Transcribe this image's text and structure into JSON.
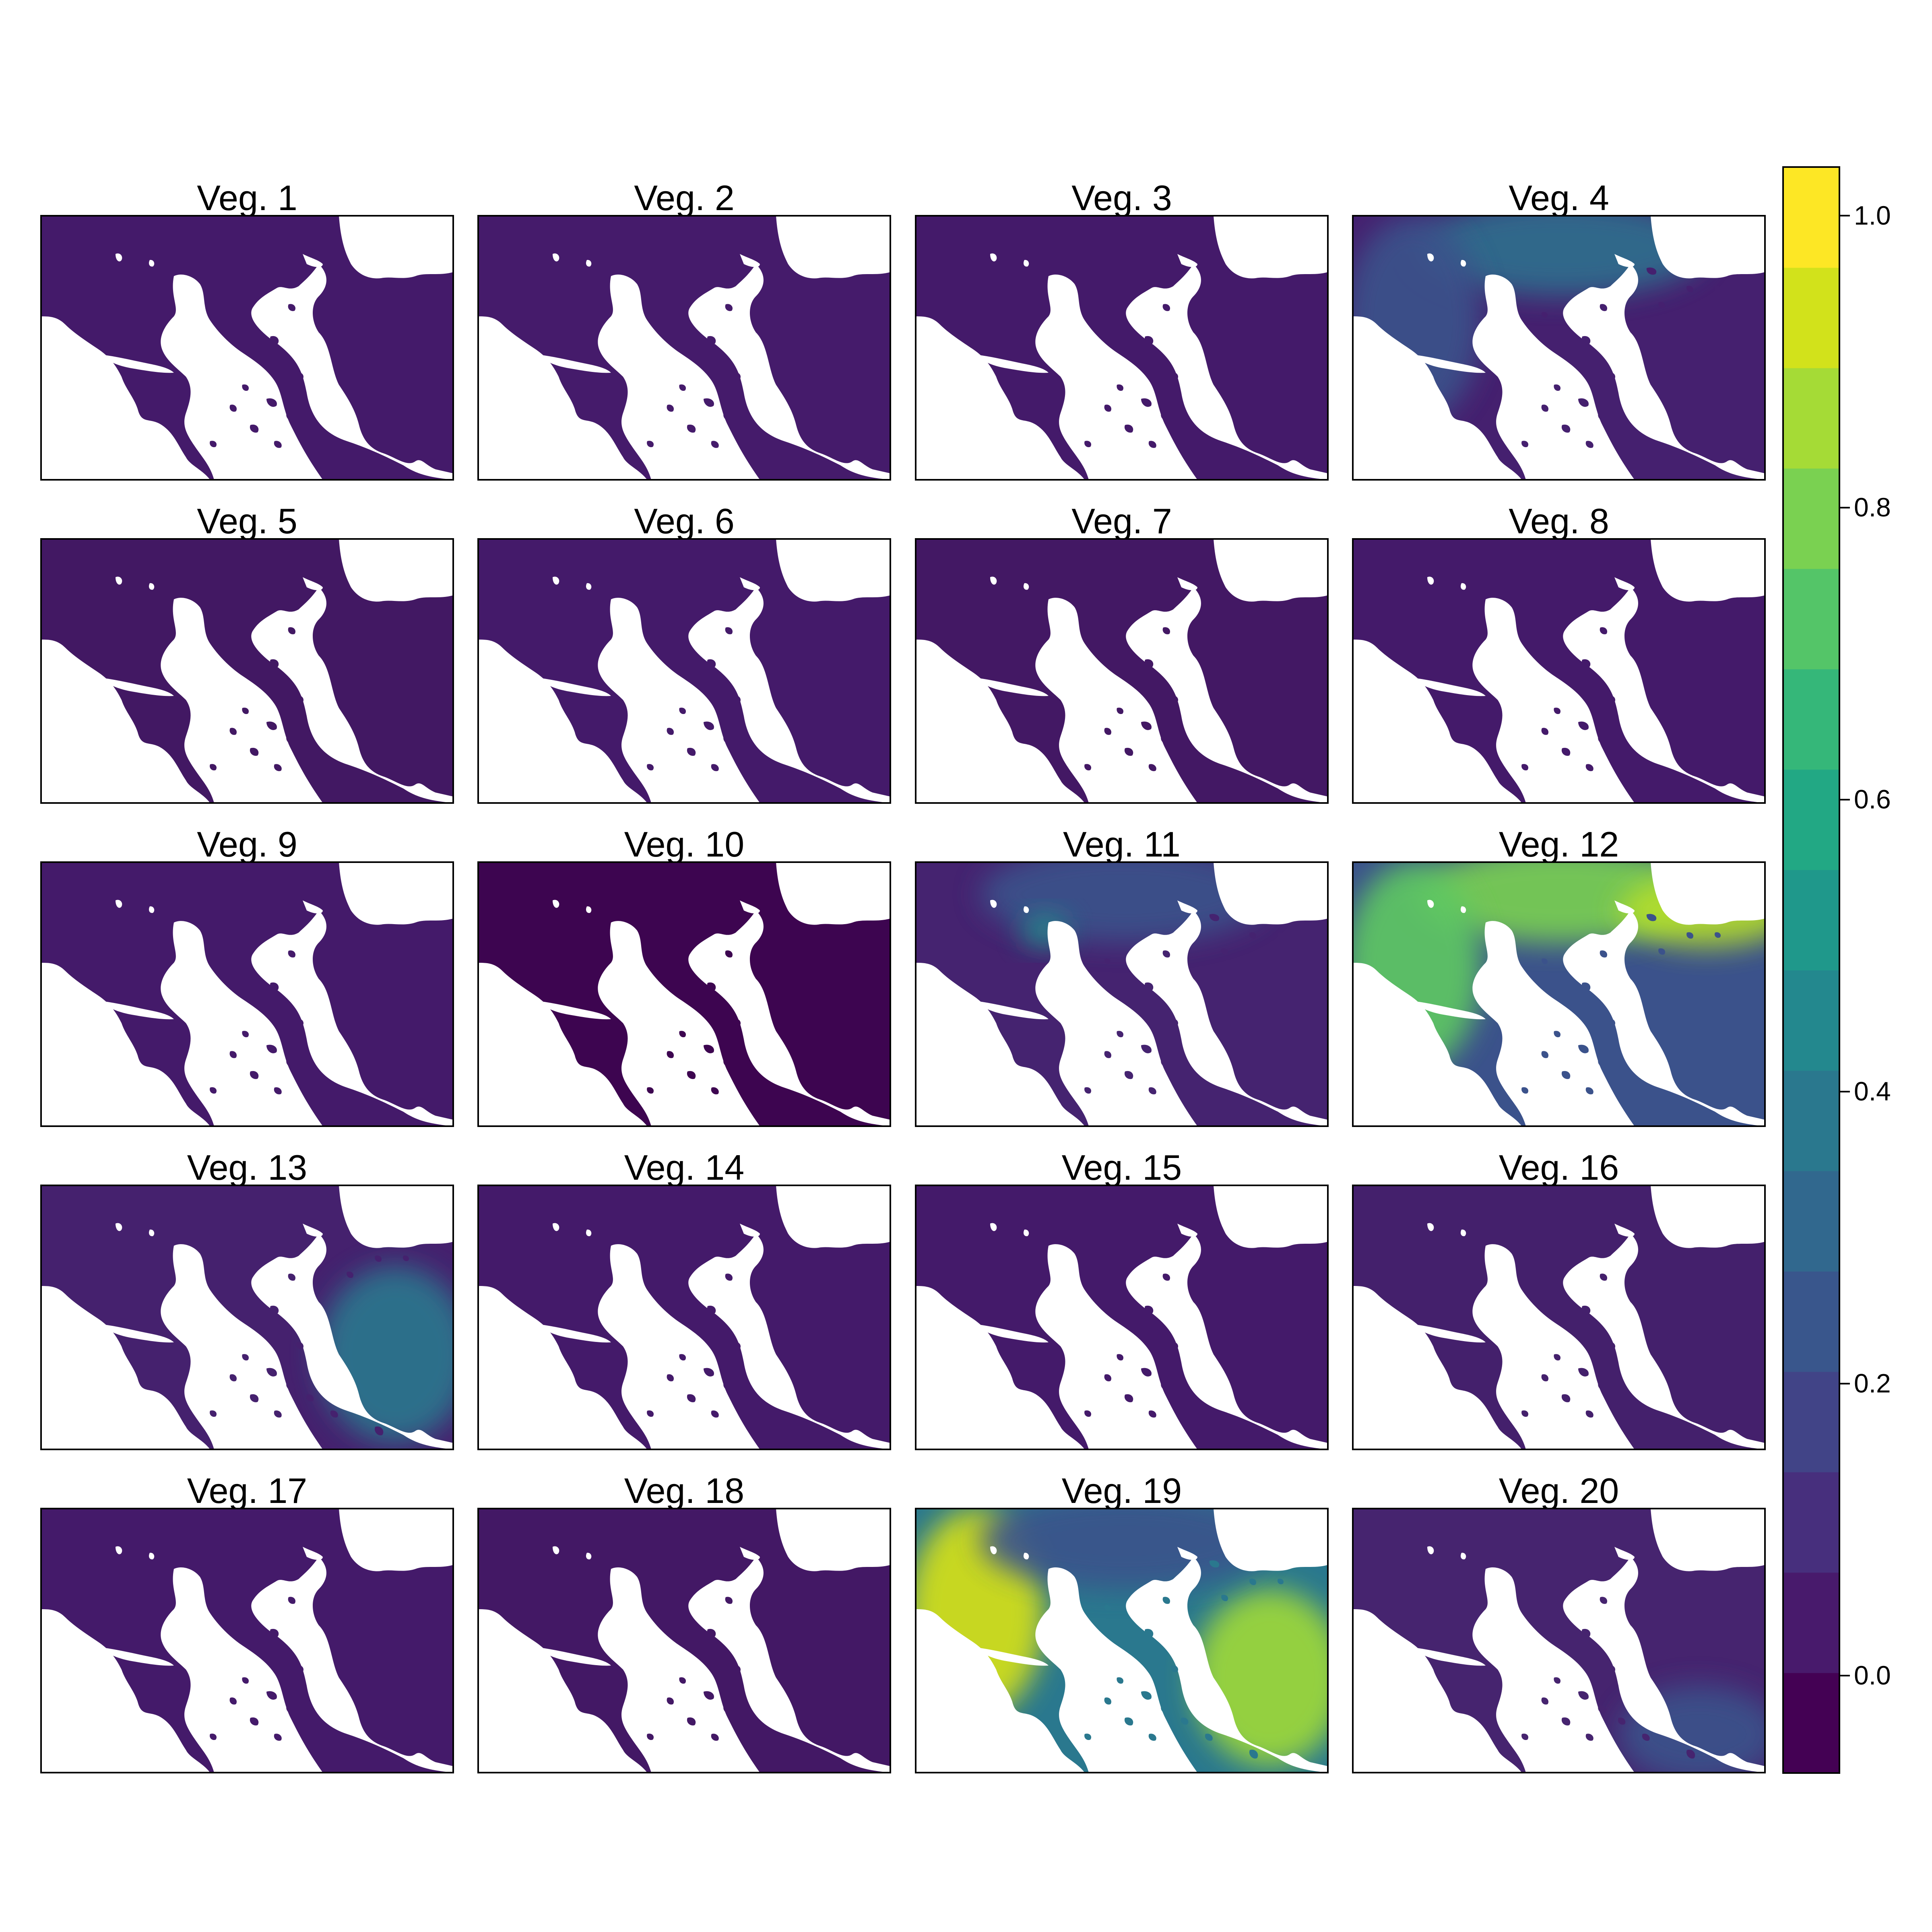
{
  "panels": [
    {
      "title": "Veg. 1",
      "base": "#441a6a"
    },
    {
      "title": "Veg. 2",
      "base": "#451b6b"
    },
    {
      "title": "Veg. 3",
      "base": "#441a6a"
    },
    {
      "title": "Veg. 4",
      "base": "#45206f",
      "highlights": [
        {
          "where": "north",
          "color": "#2e6f8e"
        },
        {
          "where": "west",
          "color": "#3b528b"
        }
      ]
    },
    {
      "title": "Veg. 5",
      "base": "#421863"
    },
    {
      "title": "Veg. 6",
      "base": "#441a6a"
    },
    {
      "title": "Veg. 7",
      "base": "#431864"
    },
    {
      "title": "Veg. 8",
      "base": "#441a6a"
    },
    {
      "title": "Veg. 9",
      "base": "#441a6a"
    },
    {
      "title": "Veg. 10",
      "base": "#3d0550"
    },
    {
      "title": "Veg. 11",
      "base": "#452370",
      "highlights": [
        {
          "where": "north",
          "color": "#3b528b"
        },
        {
          "where": "center",
          "color": "#21918c"
        }
      ]
    },
    {
      "title": "Veg. 12",
      "base": "#3b528b",
      "highlights": [
        {
          "where": "north",
          "color": "#7ad151"
        },
        {
          "where": "west",
          "color": "#5ec962"
        },
        {
          "where": "northeast",
          "color": "#b5de2b"
        }
      ]
    },
    {
      "title": "Veg. 13",
      "base": "#45216e",
      "highlights": [
        {
          "where": "east",
          "color": "#2a788e"
        }
      ]
    },
    {
      "title": "Veg. 14",
      "base": "#441a6a"
    },
    {
      "title": "Veg. 15",
      "base": "#441a6a"
    },
    {
      "title": "Veg. 16",
      "base": "#44206c"
    },
    {
      "title": "Veg. 17",
      "base": "#441a6a"
    },
    {
      "title": "Veg. 18",
      "base": "#431865"
    },
    {
      "title": "Veg. 19",
      "base": "#2a788e",
      "highlights": [
        {
          "where": "west",
          "color": "#d8e219"
        },
        {
          "where": "east",
          "color": "#a0da39"
        },
        {
          "where": "north",
          "color": "#3b528b"
        }
      ]
    },
    {
      "title": "Veg. 20",
      "base": "#46246f",
      "highlights": [
        {
          "where": "southeast",
          "color": "#3b528b"
        }
      ]
    }
  ],
  "legend": {
    "min": -0.0667,
    "max": 1.0333,
    "steps": 16,
    "ticks": [
      {
        "value": 0.0,
        "label": "0.0"
      },
      {
        "value": 0.2,
        "label": "0.2"
      },
      {
        "value": 0.4,
        "label": "0.4"
      },
      {
        "value": 0.6,
        "label": "0.6"
      },
      {
        "value": 0.8,
        "label": "0.8"
      },
      {
        "value": 1.0,
        "label": "1.0"
      }
    ],
    "colors": [
      "#440154",
      "#481a6c",
      "#472f7d",
      "#414487",
      "#39568c",
      "#31688e",
      "#2a788e",
      "#23888e",
      "#1f988b",
      "#22a884",
      "#35b779",
      "#54c568",
      "#7ad151",
      "#a5db36",
      "#d2e21b",
      "#fde725"
    ]
  },
  "outline": {
    "land_color": "#441a6a",
    "sea_color": "#ffffff"
  }
}
